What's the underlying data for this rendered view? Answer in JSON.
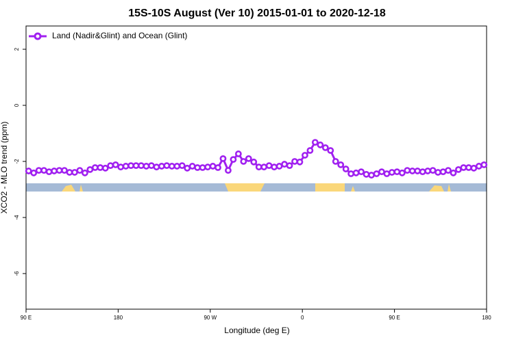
{
  "chart_data": {
    "type": "line",
    "title": "15S-10S August (Ver 10)   2015-01-01 to 2020-12-18",
    "x_label": "Longitude (deg E)",
    "y_label": "XCO2 - MLO trend (ppm)",
    "legend": "top-left",
    "x": [
      92.5,
      97.5,
      102.5,
      107.5,
      112.5,
      117.5,
      122.5,
      127.5,
      132.5,
      137.5,
      142.5,
      147.5,
      152.5,
      157.5,
      162.5,
      167.5,
      172.5,
      177.5,
      182.5,
      187.5,
      192.5,
      197.5,
      202.5,
      207.5,
      212.5,
      217.5,
      222.5,
      227.5,
      232.5,
      237.5,
      242.5,
      247.5,
      252.5,
      257.5,
      262.5,
      267.5,
      272.5,
      277.5,
      282.5,
      287.5,
      292.5,
      297.5,
      302.5,
      307.5,
      312.5,
      317.5,
      322.5,
      327.5,
      332.5,
      337.5,
      342.5,
      347.5,
      352.5,
      357.5,
      362.5,
      367.5,
      372.5,
      377.5,
      382.5,
      387.5,
      392.5,
      397.5,
      402.5,
      407.5,
      412.5,
      417.5,
      422.5,
      427.5,
      432.5,
      437.5,
      442.5,
      447.5,
      452.5,
      457.5,
      462.5,
      467.5,
      472.5,
      477.5,
      482.5,
      487.5,
      492.5,
      497.5,
      502.5,
      507.5,
      512.5,
      517.5,
      522.5,
      527.5,
      532.5,
      537.5
    ],
    "series": [
      {
        "name": "Land (Nadir&Glint) and Ocean (Glint)",
        "color": "#a020f0",
        "values": [
          -2.34,
          -2.41,
          -2.32,
          -2.32,
          -2.37,
          -2.34,
          -2.32,
          -2.32,
          -2.39,
          -2.39,
          -2.32,
          -2.41,
          -2.29,
          -2.22,
          -2.22,
          -2.24,
          -2.15,
          -2.12,
          -2.2,
          -2.17,
          -2.15,
          -2.15,
          -2.15,
          -2.17,
          -2.15,
          -2.2,
          -2.17,
          -2.15,
          -2.17,
          -2.17,
          -2.15,
          -2.24,
          -2.17,
          -2.22,
          -2.22,
          -2.2,
          -2.17,
          -2.22,
          -1.9,
          -2.32,
          -1.93,
          -1.73,
          -2.0,
          -1.9,
          -2.02,
          -2.2,
          -2.2,
          -2.15,
          -2.2,
          -2.17,
          -2.1,
          -2.15,
          -2.0,
          -2.02,
          -1.78,
          -1.61,
          -1.32,
          -1.41,
          -1.51,
          -1.61,
          -2.0,
          -2.12,
          -2.27,
          -2.44,
          -2.41,
          -2.37,
          -2.46,
          -2.49,
          -2.44,
          -2.37,
          -2.44,
          -2.39,
          -2.37,
          -2.41,
          -2.32,
          -2.34,
          -2.34,
          -2.37,
          -2.34,
          -2.32,
          -2.39,
          -2.37,
          -2.32,
          -2.41,
          -2.29,
          -2.22,
          -2.22,
          -2.24,
          -2.17,
          -2.12
        ]
      }
    ],
    "xlim": [
      90,
      540
    ],
    "xticks": [
      {
        "value": 90,
        "label": "90 E"
      },
      180,
      {
        "value": 270,
        "label": "90 W"
      },
      {
        "value": 360,
        "label": "0"
      },
      {
        "value": 450,
        "label": "90 E"
      },
      {
        "value": 540,
        "label": "180"
      }
    ],
    "ylim": [
      -7.27,
      2.83
    ],
    "yticks": [
      2,
      0,
      -2,
      -4,
      -6
    ]
  }
}
